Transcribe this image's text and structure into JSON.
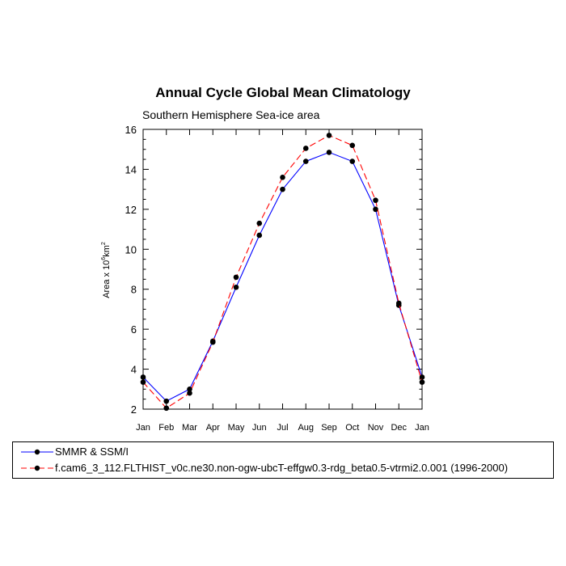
{
  "chart_data": {
    "type": "line",
    "title": "Annual Cycle Global Mean Climatology",
    "subtitle": "Southern Hemisphere Sea-ice area",
    "ylabel_main": "Area x 10",
    "ylabel_exp": "6",
    "ylabel_unit": "km",
    "ylabel_unit_exp": "2",
    "xlabel": "",
    "categories": [
      "Jan",
      "Feb",
      "Mar",
      "Apr",
      "May",
      "Jun",
      "Jul",
      "Aug",
      "Sep",
      "Oct",
      "Nov",
      "Dec",
      "Jan"
    ],
    "ylim": [
      2,
      16
    ],
    "yticks": [
      2,
      4,
      6,
      8,
      10,
      12,
      14,
      16
    ],
    "grid": false,
    "legend_position": "bottom",
    "series": [
      {
        "name": "SMMR & SSM/I",
        "color": "#0000ff",
        "dash": "solid",
        "values": [
          3.6,
          2.4,
          3.0,
          5.4,
          8.1,
          10.7,
          13.0,
          14.4,
          14.85,
          14.4,
          12.0,
          7.2,
          3.6
        ]
      },
      {
        "name": "f.cam6_3_112.FLTHIST_v0c.ne30.non-ogw-ubcT-effgw0.3-rdg_beta0.5-vtrmi2.0.001 (1996-2000)",
        "color": "#ff0000",
        "dash": "dashed",
        "values": [
          3.35,
          2.05,
          2.8,
          5.35,
          8.6,
          11.3,
          13.6,
          15.05,
          15.7,
          15.2,
          12.45,
          7.3,
          3.35
        ]
      }
    ]
  }
}
